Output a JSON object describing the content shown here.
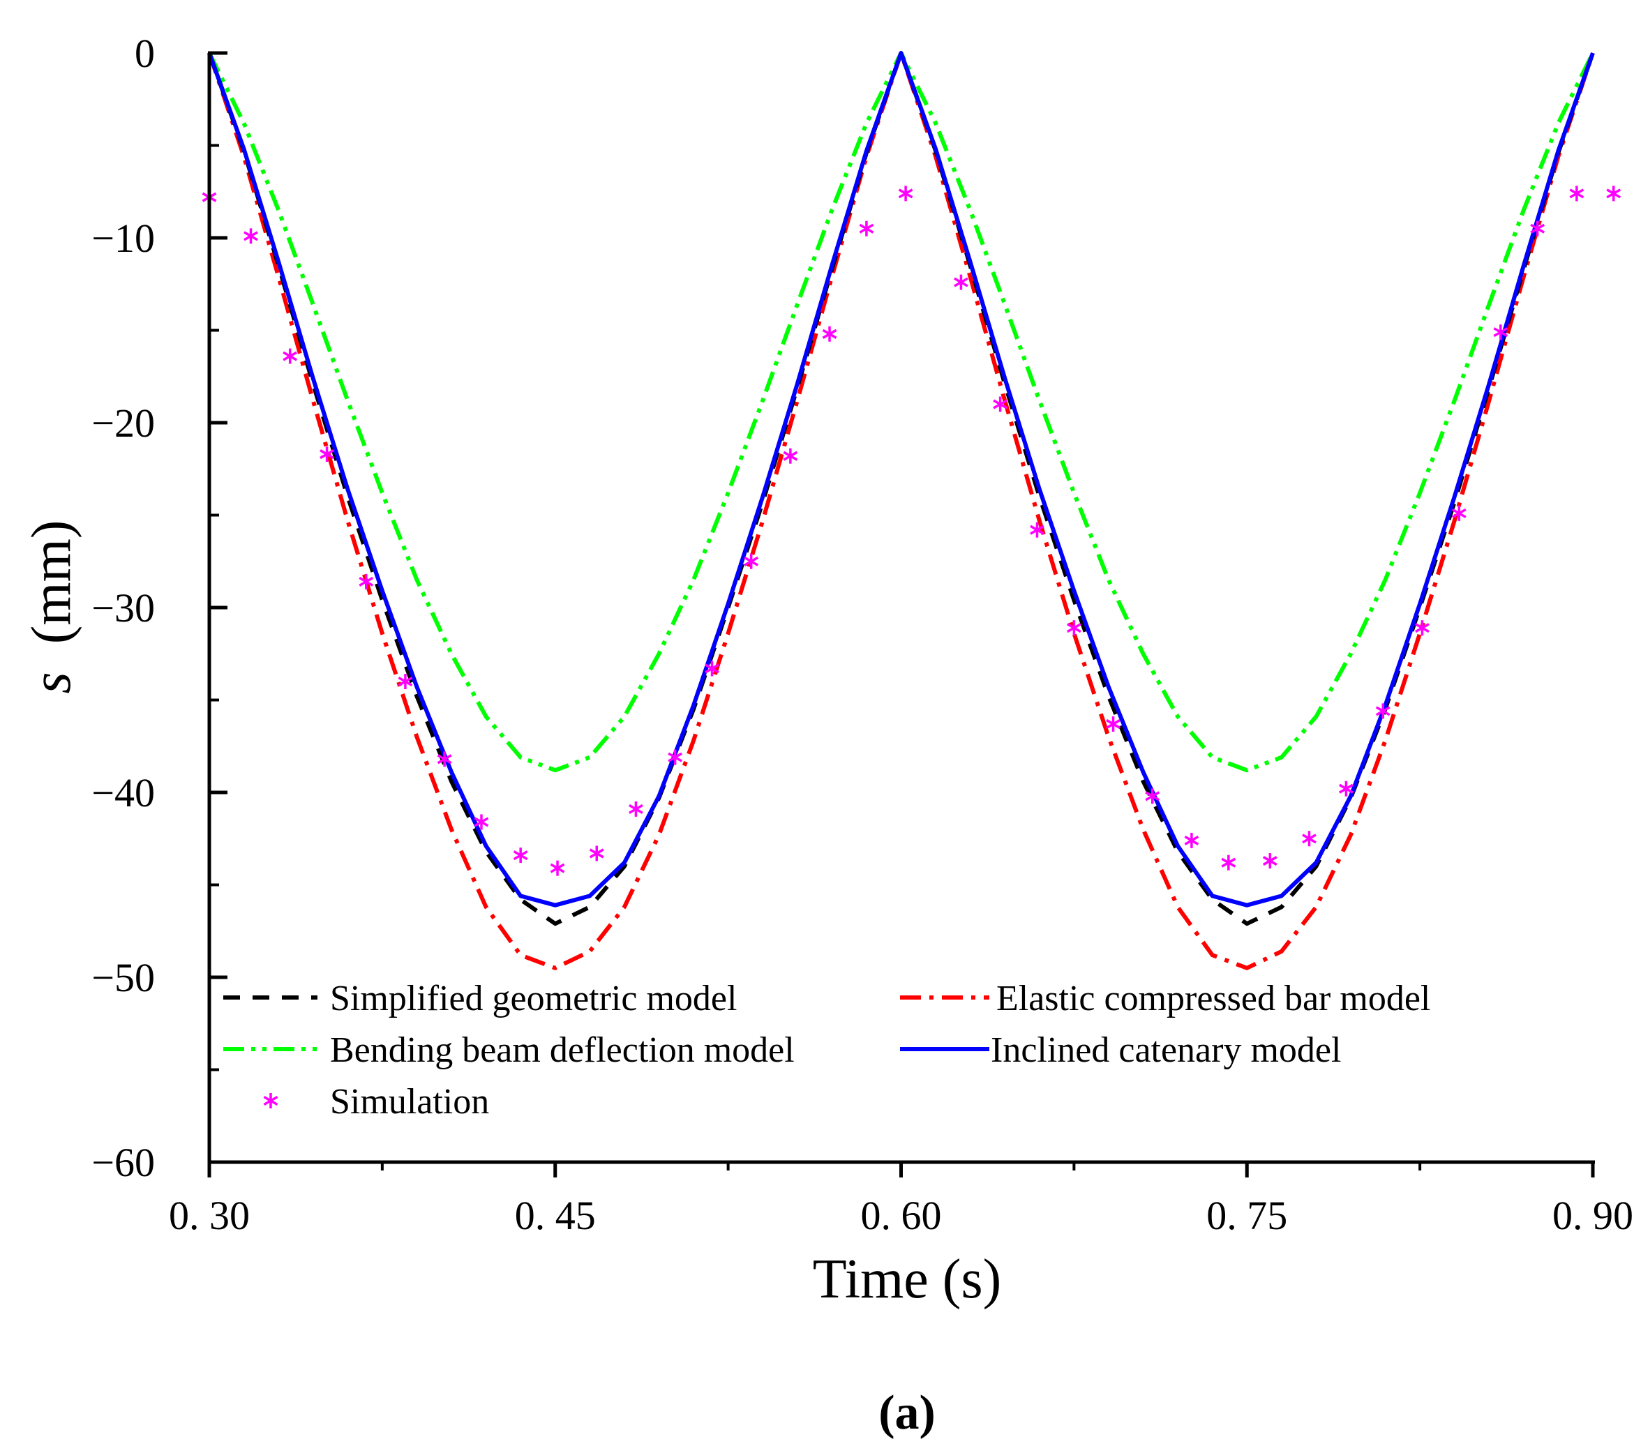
{
  "chart_data": {
    "type": "line",
    "title": "",
    "panel_label": "(a)",
    "xlabel": "Time (s)",
    "ylabel_var": "s",
    "ylabel_unit": "(mm)",
    "xlim": [
      0.3,
      0.9
    ],
    "ylim": [
      -60,
      0
    ],
    "xticks": [
      0.3,
      0.45,
      0.6,
      0.75,
      0.9
    ],
    "xtick_labels": [
      "0. 30",
      "0. 45",
      "0. 60",
      "0. 75",
      "0. 90"
    ],
    "yticks": [
      0,
      -10,
      -20,
      -30,
      -40,
      -50,
      -60
    ],
    "ytick_labels": [
      "0",
      "−10",
      "−20",
      "−30",
      "−40",
      "−50",
      "−60"
    ],
    "legend_position": "bottom",
    "series": [
      {
        "name": "Simplified geometric model",
        "style": "dash",
        "color": "#000000",
        "x": [
          0.3,
          0.315,
          0.33,
          0.345,
          0.36,
          0.375,
          0.39,
          0.405,
          0.42,
          0.435,
          0.45,
          0.465,
          0.48,
          0.495,
          0.51,
          0.525,
          0.54,
          0.555,
          0.57,
          0.585,
          0.6,
          0.615,
          0.63,
          0.645,
          0.66,
          0.675,
          0.69,
          0.705,
          0.72,
          0.735,
          0.75,
          0.765,
          0.78,
          0.795,
          0.81,
          0.825,
          0.84,
          0.855,
          0.87,
          0.885,
          0.9
        ],
        "y": [
          0.0,
          -5.3,
          -11.5,
          -17.9,
          -24.0,
          -29.6,
          -34.8,
          -39.4,
          -43.2,
          -45.8,
          -47.1,
          -46.2,
          -44.0,
          -40.3,
          -35.5,
          -30.0,
          -24.3,
          -18.1,
          -11.7,
          -5.4,
          0.0,
          -5.3,
          -11.5,
          -17.9,
          -24.0,
          -29.6,
          -34.8,
          -39.4,
          -43.2,
          -45.8,
          -47.1,
          -46.2,
          -44.0,
          -40.3,
          -35.5,
          -30.0,
          -24.3,
          -18.1,
          -11.7,
          -5.4,
          0.0
        ]
      },
      {
        "name": "Elastic compressed bar model",
        "style": "dashdot",
        "color": "#ff0000",
        "x": [
          0.3,
          0.315,
          0.33,
          0.345,
          0.36,
          0.375,
          0.39,
          0.405,
          0.42,
          0.435,
          0.45,
          0.465,
          0.48,
          0.495,
          0.51,
          0.525,
          0.54,
          0.555,
          0.57,
          0.585,
          0.6,
          0.615,
          0.63,
          0.645,
          0.66,
          0.675,
          0.69,
          0.705,
          0.72,
          0.735,
          0.75,
          0.765,
          0.78,
          0.795,
          0.81,
          0.825,
          0.84,
          0.855,
          0.87,
          0.885,
          0.9
        ],
        "y": [
          0.0,
          -5.6,
          -12.1,
          -18.8,
          -25.3,
          -31.4,
          -37.0,
          -42.0,
          -46.2,
          -48.8,
          -49.5,
          -48.6,
          -46.2,
          -42.3,
          -37.2,
          -31.4,
          -25.3,
          -18.8,
          -12.1,
          -5.6,
          0.0,
          -5.6,
          -12.1,
          -18.8,
          -25.3,
          -31.4,
          -37.0,
          -42.0,
          -46.2,
          -48.8,
          -49.5,
          -48.6,
          -46.2,
          -42.3,
          -37.2,
          -31.4,
          -25.3,
          -18.8,
          -12.1,
          -5.6,
          0.0
        ]
      },
      {
        "name": "Bending beam deflection model",
        "style": "dashdotdot",
        "color": "#00ff00",
        "x": [
          0.3,
          0.315,
          0.33,
          0.345,
          0.36,
          0.375,
          0.39,
          0.405,
          0.42,
          0.435,
          0.45,
          0.465,
          0.48,
          0.495,
          0.51,
          0.525,
          0.54,
          0.555,
          0.57,
          0.585,
          0.6,
          0.615,
          0.63,
          0.645,
          0.66,
          0.675,
          0.69,
          0.705,
          0.72,
          0.735,
          0.75,
          0.765,
          0.78,
          0.795,
          0.81,
          0.825,
          0.84,
          0.855,
          0.87,
          0.885,
          0.9
        ],
        "y": [
          0.0,
          -3.8,
          -8.5,
          -13.6,
          -18.8,
          -23.8,
          -28.5,
          -32.5,
          -35.9,
          -38.1,
          -38.8,
          -38.1,
          -35.9,
          -32.5,
          -28.5,
          -23.8,
          -18.8,
          -13.6,
          -8.5,
          -3.8,
          0.0,
          -3.8,
          -8.5,
          -13.6,
          -18.8,
          -23.8,
          -28.5,
          -32.5,
          -35.9,
          -38.1,
          -38.8,
          -38.1,
          -35.9,
          -32.5,
          -28.5,
          -23.8,
          -18.8,
          -13.6,
          -8.5,
          -3.8,
          0.0
        ]
      },
      {
        "name": "Inclined catenary model",
        "style": "solid",
        "color": "#0000ff",
        "x": [
          0.3,
          0.315,
          0.33,
          0.345,
          0.36,
          0.375,
          0.39,
          0.405,
          0.42,
          0.435,
          0.45,
          0.465,
          0.48,
          0.495,
          0.51,
          0.525,
          0.54,
          0.555,
          0.57,
          0.585,
          0.6,
          0.615,
          0.63,
          0.645,
          0.66,
          0.675,
          0.69,
          0.705,
          0.72,
          0.735,
          0.75,
          0.765,
          0.78,
          0.795,
          0.81,
          0.825,
          0.84,
          0.855,
          0.87,
          0.885,
          0.9
        ],
        "y": [
          0.0,
          -5.2,
          -11.3,
          -17.6,
          -23.6,
          -29.1,
          -34.3,
          -38.9,
          -42.9,
          -45.6,
          -46.1,
          -45.6,
          -43.8,
          -40.2,
          -35.3,
          -29.8,
          -24.0,
          -17.9,
          -11.5,
          -5.3,
          0.0,
          -5.2,
          -11.3,
          -17.6,
          -23.6,
          -29.1,
          -34.3,
          -38.9,
          -42.9,
          -45.6,
          -46.1,
          -45.6,
          -43.8,
          -40.2,
          -35.3,
          -29.8,
          -24.0,
          -17.9,
          -11.5,
          -5.3,
          0.0
        ]
      },
      {
        "name": "Simulation",
        "style": "marker-asterisk",
        "color": "#ff00ff",
        "x": [
          0.3,
          0.318,
          0.335,
          0.351,
          0.368,
          0.385,
          0.402,
          0.418,
          0.435,
          0.451,
          0.468,
          0.485,
          0.502,
          0.518,
          0.535,
          0.552,
          0.569,
          0.585,
          0.602,
          0.626,
          0.643,
          0.659,
          0.675,
          0.692,
          0.709,
          0.726,
          0.742,
          0.76,
          0.777,
          0.793,
          0.809,
          0.826,
          0.842,
          0.86,
          0.876,
          0.893,
          0.909
        ],
        "y": [
          -7.8,
          -9.9,
          -16.4,
          -21.7,
          -28.6,
          -34.0,
          -38.2,
          -41.6,
          -43.4,
          -44.1,
          -43.3,
          -40.9,
          -38.1,
          -33.3,
          -27.5,
          -21.8,
          -15.2,
          -9.5,
          -7.6,
          -12.4,
          -19.0,
          -25.8,
          -31.1,
          -36.3,
          -40.2,
          -42.6,
          -43.8,
          -43.7,
          -42.5,
          -39.8,
          -35.6,
          -31.1,
          -24.9,
          -15.1,
          -9.5,
          -7.6,
          -7.6
        ]
      }
    ]
  }
}
